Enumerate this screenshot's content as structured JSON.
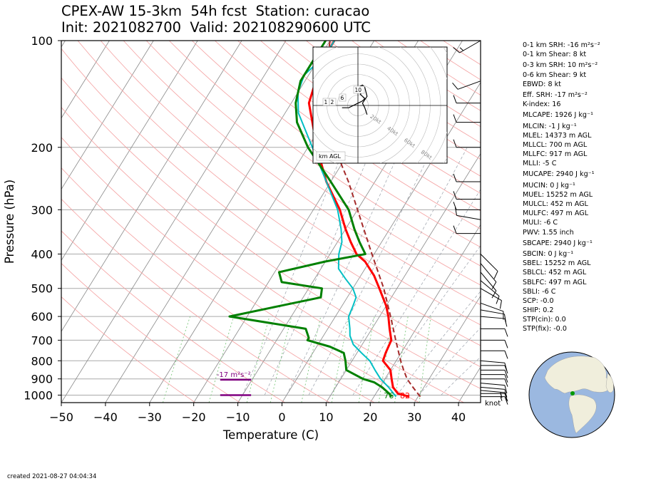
{
  "header": {
    "line1": "CPEX-AW 15-3km  54h fcst  Station: curacao",
    "line2": "Init: 2021082700  Valid: 202108290600 UTC"
  },
  "footer": {
    "created": "created 2021-08-27 04:04:34"
  },
  "params": [
    "0-1 km SRH: -16 m²s⁻²",
    "0-1 km Shear: 8 kt",
    "0-3 km SRH: 10 m²s⁻²",
    "0-6 km Shear: 9 kt",
    "EBWD: 8 kt",
    "Eff. SRH: -17 m²s⁻²",
    "K-index: 16",
    "MLCAPE: 1926 J kg⁻¹",
    "MLCIN: -1 J kg⁻¹",
    "MLEL: 14373 m AGL",
    "MLLCL: 700 m AGL",
    "MLLFC: 917 m AGL",
    "MLLI: -5 C",
    "MUCAPE: 2940 J kg⁻¹",
    "MUCIN: 0 J kg⁻¹",
    "MUEL: 15252 m AGL",
    "MULCL: 452 m AGL",
    "MULFC: 497 m AGL",
    "MULI: -6 C",
    "PWV: 1.55 inch",
    "SBCAPE: 2940 J kg⁻¹",
    "SBCIN: 0 J kg⁻¹",
    "SBEL: 15252 m AGL",
    "SBLCL: 452 m AGL",
    "SBLFC: 497 m AGL",
    "SBLI: -6 C",
    "SCP: -0.0",
    "SHIP: 0.2",
    "STP(cin): 0.0",
    "STP(fix): -0.0"
  ],
  "colors": {
    "temperature": "#ff0000",
    "dewpoint": "#008000",
    "wetbulb": "#00bfc4",
    "parcel": "#a52a2a",
    "srh_bar": "#800080",
    "isotherm": "#888888",
    "dry_adiabat": "#f4a0a0",
    "mixing_ratio": "#7fc97f",
    "globe_ocean": "#9bb8e0",
    "globe_land": "#f0eedc",
    "station_marker": "#009900"
  },
  "chart_data": {
    "type": "line",
    "subtype": "skew-t log-p",
    "xlabel": "Temperature (C)",
    "ylabel": "Pressure (hPa)",
    "xlim": [
      -50,
      45
    ],
    "ylim": [
      1050,
      100
    ],
    "y_scale": "log",
    "xticks": [
      -50,
      -40,
      -30,
      -20,
      -10,
      0,
      10,
      20,
      30,
      40
    ],
    "yticks": [
      100,
      200,
      300,
      400,
      500,
      600,
      700,
      800,
      900,
      1000
    ],
    "grid": true,
    "series": [
      {
        "key": "temperature",
        "points": [
          [
            1010,
            28
          ],
          [
            990,
            25
          ],
          [
            950,
            23
          ],
          [
            900,
            21.5
          ],
          [
            850,
            20
          ],
          [
            800,
            17
          ],
          [
            760,
            16.5
          ],
          [
            700,
            16
          ],
          [
            650,
            14
          ],
          [
            600,
            12
          ],
          [
            560,
            10
          ],
          [
            500,
            6
          ],
          [
            460,
            3
          ],
          [
            420,
            -1
          ],
          [
            400,
            -4
          ],
          [
            370,
            -7
          ],
          [
            340,
            -10
          ],
          [
            300,
            -14
          ],
          [
            250,
            -21
          ],
          [
            200,
            -28
          ],
          [
            150,
            -36
          ],
          [
            125,
            -38
          ],
          [
            110,
            -39
          ],
          [
            100,
            -39
          ]
        ]
      },
      {
        "key": "wetbulb",
        "points": [
          [
            1010,
            25
          ],
          [
            990,
            24
          ],
          [
            950,
            22
          ],
          [
            900,
            19
          ],
          [
            850,
            16.5
          ],
          [
            800,
            14
          ],
          [
            760,
            11
          ],
          [
            720,
            8
          ],
          [
            680,
            6
          ],
          [
            650,
            5
          ],
          [
            600,
            3
          ],
          [
            560,
            2.5
          ],
          [
            530,
            2
          ],
          [
            500,
            0
          ],
          [
            470,
            -3
          ],
          [
            440,
            -6
          ],
          [
            400,
            -8
          ],
          [
            370,
            -9
          ],
          [
            340,
            -11
          ],
          [
            300,
            -14.5
          ],
          [
            250,
            -21
          ],
          [
            200,
            -29
          ],
          [
            160,
            -37
          ],
          [
            140,
            -40
          ],
          [
            125,
            -41
          ],
          [
            110,
            -39
          ],
          [
            100,
            -39
          ]
        ]
      },
      {
        "key": "dewpoint",
        "points": [
          [
            1010,
            24
          ],
          [
            990,
            23
          ],
          [
            950,
            20.5
          ],
          [
            920,
            18
          ],
          [
            900,
            15
          ],
          [
            850,
            10
          ],
          [
            800,
            8.5
          ],
          [
            760,
            7
          ],
          [
            730,
            3
          ],
          [
            700,
            -3
          ],
          [
            690,
            -3
          ],
          [
            650,
            -5
          ],
          [
            600,
            -24
          ],
          [
            560,
            -14
          ],
          [
            530,
            -6
          ],
          [
            500,
            -7
          ],
          [
            480,
            -17
          ],
          [
            450,
            -19
          ],
          [
            420,
            -10
          ],
          [
            400,
            -2
          ],
          [
            370,
            -5
          ],
          [
            340,
            -8
          ],
          [
            300,
            -12
          ],
          [
            250,
            -20
          ],
          [
            200,
            -30
          ],
          [
            170,
            -36
          ],
          [
            150,
            -39
          ],
          [
            130,
            -41
          ],
          [
            115,
            -41
          ],
          [
            100,
            -41
          ]
        ]
      },
      {
        "key": "parcel",
        "points": [
          [
            1010,
            30.5
          ],
          [
            1000,
            30
          ],
          [
            950,
            27.5
          ],
          [
            900,
            25
          ],
          [
            850,
            23
          ],
          [
            800,
            21
          ],
          [
            700,
            17
          ],
          [
            600,
            12.5
          ],
          [
            500,
            7
          ],
          [
            400,
            -0.5
          ],
          [
            300,
            -10
          ],
          [
            250,
            -16
          ],
          [
            200,
            -24
          ],
          [
            150,
            -33
          ],
          [
            120,
            -37
          ],
          [
            100,
            -40
          ]
        ]
      }
    ],
    "surface_labels": {
      "dewpoint": "76",
      "temperature": "82",
      "units": "knot"
    },
    "srh_annotation": {
      "label": "-17 m²s⁻²",
      "pressures": [
        905,
        1000
      ],
      "temp_range": [
        -14,
        -7
      ]
    },
    "wind_barbs": [
      {
        "p": 1010,
        "dir": 90,
        "kt": 15
      },
      {
        "p": 990,
        "dir": 90,
        "kt": 15
      },
      {
        "p": 970,
        "dir": 95,
        "kt": 15
      },
      {
        "p": 950,
        "dir": 95,
        "kt": 12
      },
      {
        "p": 925,
        "dir": 95,
        "kt": 12
      },
      {
        "p": 900,
        "dir": 90,
        "kt": 10
      },
      {
        "p": 875,
        "dir": 90,
        "kt": 10
      },
      {
        "p": 850,
        "dir": 90,
        "kt": 10
      },
      {
        "p": 825,
        "dir": 90,
        "kt": 10
      },
      {
        "p": 800,
        "dir": 95,
        "kt": 10
      },
      {
        "p": 750,
        "dir": 90,
        "kt": 10
      },
      {
        "p": 700,
        "dir": 90,
        "kt": 10
      },
      {
        "p": 650,
        "dir": 90,
        "kt": 10
      },
      {
        "p": 600,
        "dir": 95,
        "kt": 10
      },
      {
        "p": 575,
        "dir": 100,
        "kt": 10
      },
      {
        "p": 550,
        "dir": 110,
        "kt": 10
      },
      {
        "p": 500,
        "dir": 120,
        "kt": 10
      },
      {
        "p": 475,
        "dir": 130,
        "kt": 10
      },
      {
        "p": 450,
        "dir": 140,
        "kt": 10
      },
      {
        "p": 425,
        "dir": 140,
        "kt": 10
      },
      {
        "p": 400,
        "dir": 135,
        "kt": 10
      },
      {
        "p": 350,
        "dir": 270,
        "kt": 10
      },
      {
        "p": 320,
        "dir": 280,
        "kt": 10
      },
      {
        "p": 300,
        "dir": 270,
        "kt": 10
      },
      {
        "p": 280,
        "dir": 270,
        "kt": 10
      },
      {
        "p": 250,
        "dir": 270,
        "kt": 10
      },
      {
        "p": 200,
        "dir": 270,
        "kt": 10
      },
      {
        "p": 170,
        "dir": 270,
        "kt": 10
      },
      {
        "p": 150,
        "dir": 270,
        "kt": 10
      },
      {
        "p": 130,
        "dir": 250,
        "kt": 10
      },
      {
        "p": 100,
        "dir": 240,
        "kt": 15
      }
    ],
    "hodograph": {
      "units_label": "km AGL",
      "ring_labels": [
        "20kt",
        "40kt",
        "60kt",
        "80kt"
      ],
      "ring_values": [
        20,
        40,
        60,
        80
      ],
      "height_labels": [
        "1",
        "2",
        "6",
        "10"
      ],
      "points": [
        [
          -7,
          -1
        ],
        [
          -6,
          -1
        ],
        [
          -5,
          -1
        ],
        [
          -4,
          -1
        ],
        [
          0,
          1
        ],
        [
          2,
          2
        ],
        [
          3,
          3
        ],
        [
          1,
          5
        ],
        [
          2,
          6
        ],
        [
          0,
          8
        ],
        [
          2,
          9
        ],
        [
          3,
          8
        ],
        [
          4,
          4
        ],
        [
          2,
          1
        ],
        [
          3,
          -1
        ],
        [
          4,
          -4
        ]
      ]
    }
  }
}
